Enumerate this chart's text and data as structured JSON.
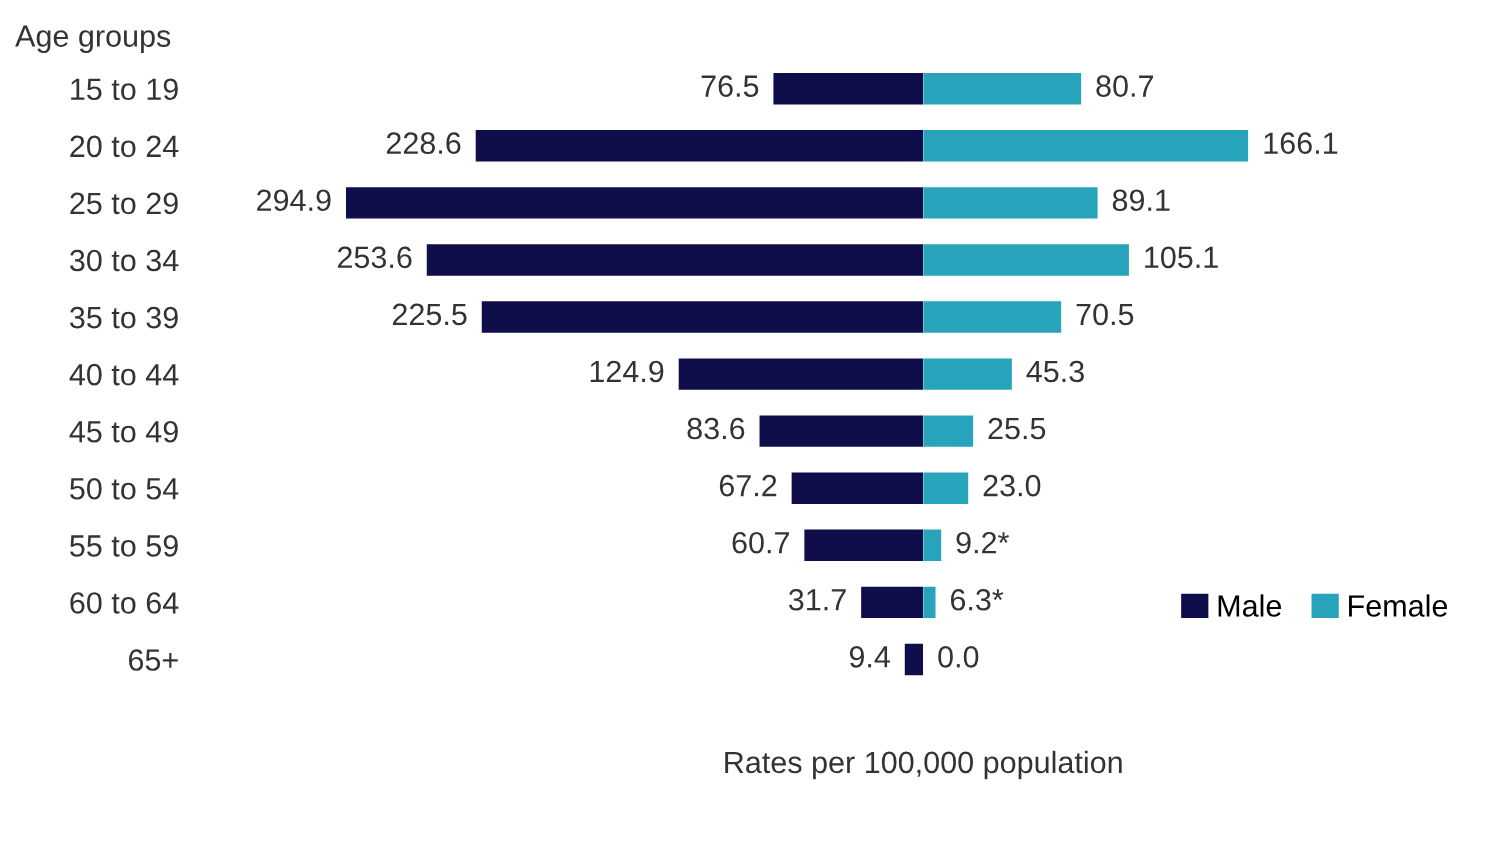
{
  "chart_data": [
    {
      "type": "bar",
      "orientation": "horizontal",
      "ylabel": "Age groups",
      "xlabel": "Rates per 100,000 population",
      "categories": [
        "15 to 19",
        "20 to 24",
        "25 to 29",
        "30 to 34",
        "35 to 39",
        "40 to 44",
        "45 to 49",
        "50 to 54",
        "55 to 59",
        "60 to 64",
        "65+"
      ],
      "xlim": [
        294.9,
        0
      ],
      "series": [
        {
          "name": "Male",
          "color": "#0f0e4a",
          "values": [
            76.5,
            228.6,
            294.9,
            253.6,
            225.5,
            124.9,
            83.6,
            67.2,
            60.7,
            31.7,
            9.4
          ],
          "value_labels": [
            "76.5",
            "228.6",
            "294.9",
            "253.6",
            "225.5",
            "124.9",
            "83.6",
            "67.2",
            "60.7",
            "31.7",
            "9.4"
          ]
        }
      ],
      "grid": false
    },
    {
      "type": "bar",
      "orientation": "horizontal",
      "categories": [
        null,
        null,
        null,
        null,
        null,
        null,
        null,
        null,
        null,
        null,
        null
      ],
      "xlim": [
        0,
        166.1
      ],
      "series": [
        {
          "name": "Female",
          "color": "#27a3bb",
          "values": [
            80.7,
            166.1,
            89.1,
            105.1,
            70.5,
            45.3,
            25.5,
            23.0,
            9.2,
            6.3,
            0.0
          ],
          "value_labels": [
            "80.7",
            "166.1",
            "89.1",
            "105.1",
            "70.5",
            "45.3",
            "25.5",
            "23.0",
            "9.2*",
            "6.3*",
            "0.0"
          ]
        }
      ],
      "legend": "bottom right",
      "grid": false
    }
  ]
}
